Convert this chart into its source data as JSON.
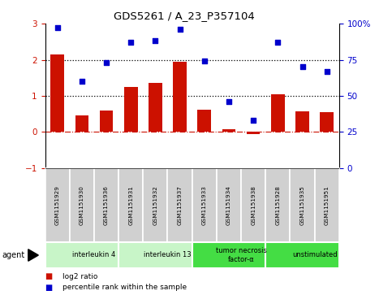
{
  "title": "GDS5261 / A_23_P357104",
  "samples": [
    "GSM1151929",
    "GSM1151930",
    "GSM1151936",
    "GSM1151931",
    "GSM1151932",
    "GSM1151937",
    "GSM1151933",
    "GSM1151934",
    "GSM1151938",
    "GSM1151928",
    "GSM1151935",
    "GSM1151951"
  ],
  "log2_ratio": [
    2.15,
    0.45,
    0.6,
    1.25,
    1.35,
    1.95,
    0.62,
    0.07,
    -0.05,
    1.05,
    0.58,
    0.55
  ],
  "percentile": [
    97,
    60,
    73,
    87,
    88,
    96,
    74,
    46,
    33,
    87,
    70,
    67
  ],
  "groups": [
    {
      "label": "interleukin 4",
      "start": 0,
      "end": 3,
      "color": "#c8f5c8"
    },
    {
      "label": "interleukin 13",
      "start": 3,
      "end": 6,
      "color": "#c8f5c8"
    },
    {
      "label": "tumor necrosis\nfactor-α",
      "start": 6,
      "end": 9,
      "color": "#44dd44"
    },
    {
      "label": "unstimulated",
      "start": 9,
      "end": 12,
      "color": "#44dd44"
    }
  ],
  "bar_color": "#cc1100",
  "dot_color": "#0000cc",
  "ylim": [
    -1,
    3
  ],
  "y2lim": [
    0,
    100
  ],
  "yticks": [
    -1,
    0,
    1,
    2,
    3
  ],
  "y2ticks": [
    0,
    25,
    50,
    75,
    100
  ],
  "y2ticklabels": [
    "0",
    "25",
    "50",
    "75",
    "100%"
  ],
  "hline1": 1.0,
  "hline2": 2.0,
  "zero_line": 0.0,
  "bar_width": 0.55,
  "background_color": "#ffffff",
  "sample_box_color": "#d0d0d0",
  "legend_bar_label": "log2 ratio",
  "legend_dot_label": "percentile rank within the sample",
  "agent_label": "agent"
}
